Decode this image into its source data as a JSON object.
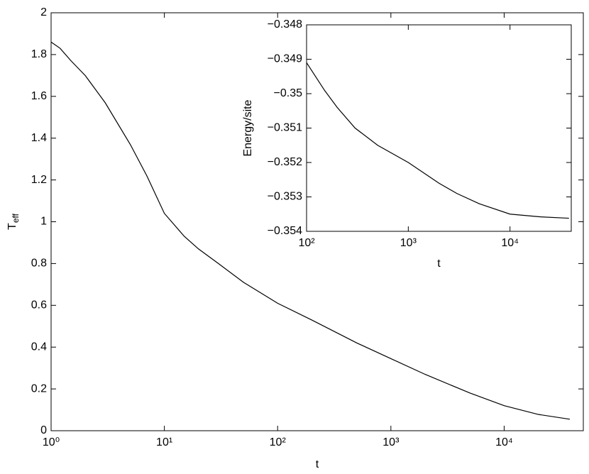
{
  "chart_data": [
    {
      "type": "line",
      "xlabel": "t",
      "ylabel": "T",
      "ylabel_subscript": "eff",
      "xscale": "log",
      "xlim": [
        1,
        50000
      ],
      "xticks": [
        {
          "value": 1,
          "label": "10⁰"
        },
        {
          "value": 10,
          "label": "10¹"
        },
        {
          "value": 100,
          "label": "10²"
        },
        {
          "value": 1000,
          "label": "10³"
        },
        {
          "value": 10000,
          "label": "10⁴"
        }
      ],
      "ylim": [
        0,
        2
      ],
      "yticks": [
        0,
        0.2,
        0.4,
        0.6,
        0.8,
        1,
        1.2,
        1.4,
        1.6,
        1.8,
        2
      ],
      "series": [
        {
          "color": "#000000",
          "x": [
            1,
            1.2,
            1.5,
            2,
            3,
            5,
            7,
            10,
            15,
            20,
            30,
            50,
            100,
            200,
            500,
            1000,
            2000,
            5000,
            10000,
            20000,
            38000
          ],
          "values": [
            1.86,
            1.83,
            1.77,
            1.7,
            1.57,
            1.37,
            1.22,
            1.04,
            0.93,
            0.87,
            0.8,
            0.71,
            0.61,
            0.53,
            0.42,
            0.345,
            0.27,
            0.18,
            0.12,
            0.078,
            0.055
          ]
        }
      ]
    },
    {
      "type": "line",
      "xlabel": "t",
      "ylabel": "Energy/site",
      "xscale": "log",
      "xlim": [
        100,
        40000
      ],
      "xticks": [
        {
          "value": 100,
          "label": "10²"
        },
        {
          "value": 1000,
          "label": "10³"
        },
        {
          "value": 10000,
          "label": "10⁴"
        }
      ],
      "ylim": [
        -0.354,
        -0.348
      ],
      "yticks": [
        {
          "value": -0.354,
          "label": "−0.354"
        },
        {
          "value": -0.353,
          "label": "−0.353"
        },
        {
          "value": -0.352,
          "label": "−0.352"
        },
        {
          "value": -0.351,
          "label": "−0.351"
        },
        {
          "value": -0.35,
          "label": "−0.35"
        },
        {
          "value": -0.349,
          "label": "−0.349"
        },
        {
          "value": -0.348,
          "label": "−0.348"
        }
      ],
      "series": [
        {
          "color": "#000000",
          "x": [
            100,
            150,
            200,
            300,
            500,
            1000,
            2000,
            3000,
            5000,
            10000,
            20000,
            38000
          ],
          "values": [
            -0.3491,
            -0.3499,
            -0.3504,
            -0.351,
            -0.3515,
            -0.352,
            -0.3526,
            -0.3529,
            -0.3532,
            -0.3535,
            -0.35358,
            -0.35362
          ]
        }
      ]
    }
  ]
}
